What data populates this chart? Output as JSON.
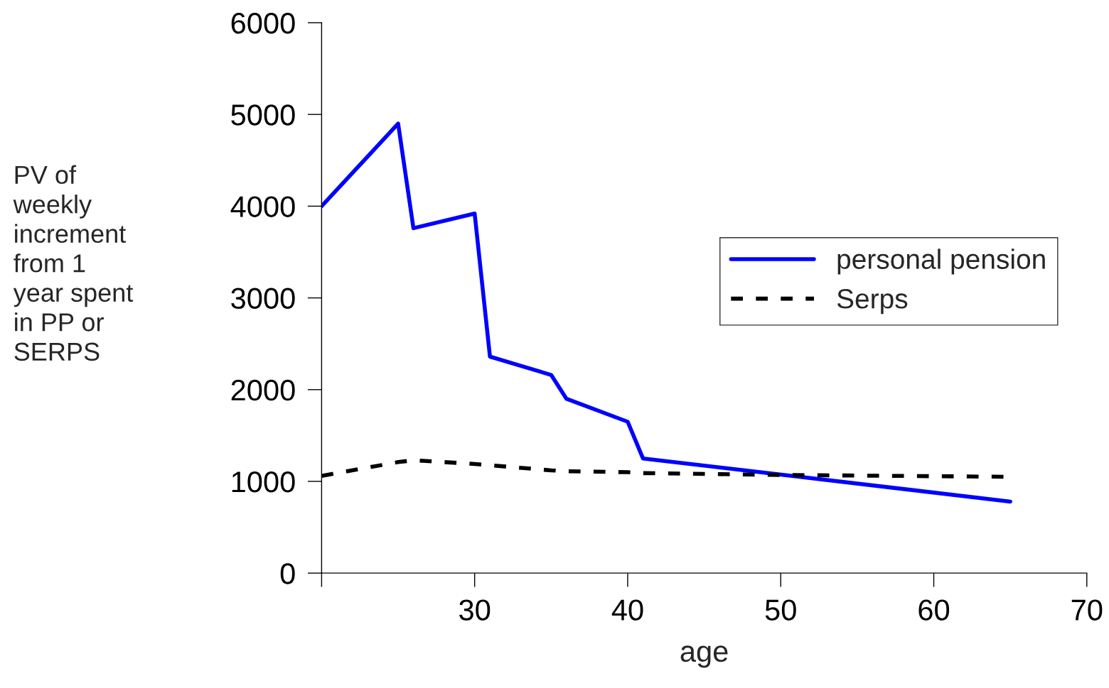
{
  "chart_data": {
    "type": "line",
    "xlabel": "age",
    "ylabel": "PV of\nweekly\nincrement\nfrom 1\nyear spent\nin PP or\nSERPS",
    "series": [
      {
        "name": "personal pension",
        "color": "#0000ff",
        "line_style": "solid",
        "x": [
          20,
          25,
          26,
          30,
          31,
          35,
          36,
          40,
          41,
          65
        ],
        "values": [
          4000,
          4900,
          3760,
          3920,
          2360,
          2160,
          1900,
          1650,
          1250,
          780
        ]
      },
      {
        "name": "Serps",
        "color": "#000000",
        "line_style": "dashed",
        "x": [
          20,
          25,
          26,
          30,
          35,
          36,
          40,
          41,
          50,
          65
        ],
        "values": [
          1060,
          1210,
          1230,
          1190,
          1120,
          1110,
          1100,
          1090,
          1070,
          1050
        ]
      }
    ],
    "xlim": [
      20,
      70
    ],
    "xticks": [
      {
        "value": 20,
        "label": null
      },
      30,
      40,
      50,
      60,
      70
    ],
    "ylim": [
      0,
      6000
    ],
    "yticks": [
      0,
      1000,
      2000,
      3000,
      4000,
      5000,
      6000
    ],
    "grid": false,
    "legend": "right",
    "marker": "none"
  }
}
